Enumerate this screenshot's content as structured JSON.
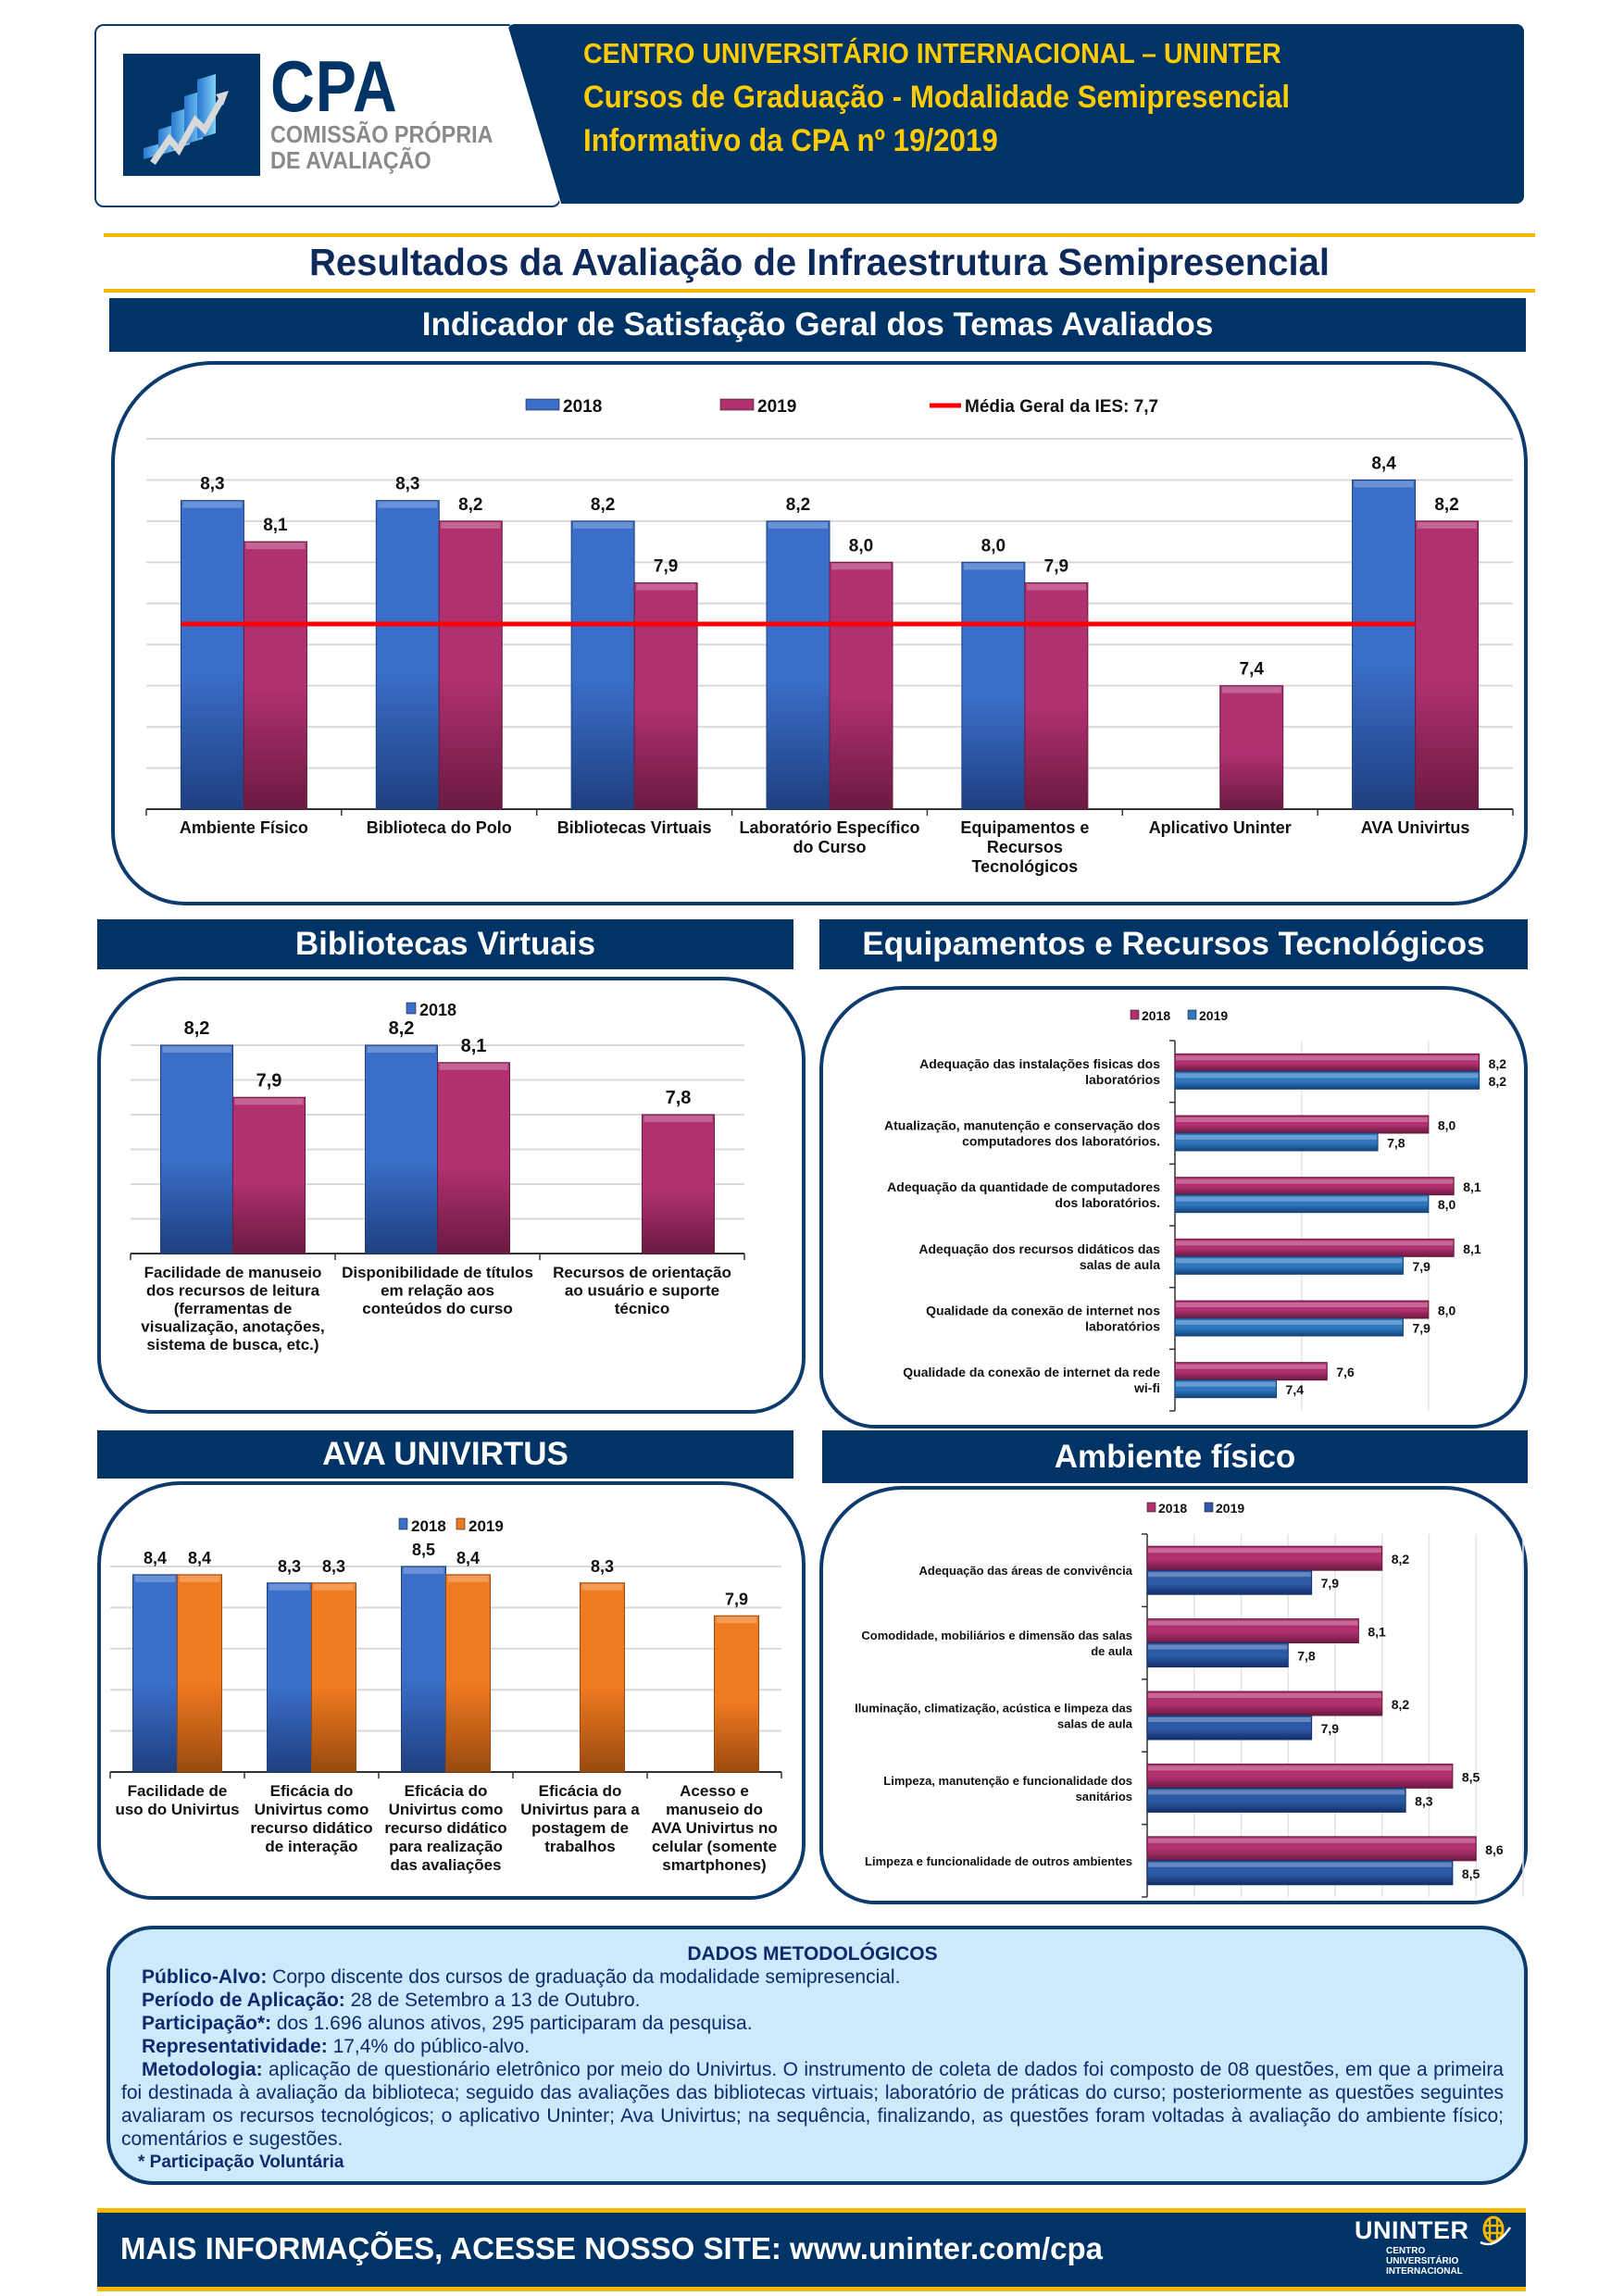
{
  "header": {
    "logo": {
      "title": "CPA",
      "subtitle_line1": "COMISSÃO PRÓPRIA",
      "subtitle_line2": "DE AVALIAÇÃO",
      "icon": "rising-bar-chart-icon"
    },
    "line1": "CENTRO UNIVERSITÁRIO INTERNACIONAL – UNINTER",
    "line2": "Cursos de Graduação - Modalidade Semipresencial",
    "line3": "Informativo da CPA nº 19/2019"
  },
  "page_title": "Resultados da Avaliação de Infraestrutura Semipresencial",
  "sections": {
    "main": "Indicador de Satisfação Geral dos Temas Avaliados",
    "bibliotecas": "Bibliotecas Virtuais",
    "equipamentos": "Equipamentos e Recursos Tecnológicos",
    "ava": "AVA UNIVIRTUS",
    "ambiente": "Ambiente físico"
  },
  "colors": {
    "navy": "#003366",
    "gold": "#f5b800",
    "yellow_text": "#ffcc00",
    "blue_2018": "#3a6ec8",
    "magenta_2019": "#b03070",
    "orange_2019": "#f07a20",
    "steel_blue_2019": "#2f78c0",
    "red_mean": "#ff0000",
    "method_bg": "#cdeafc"
  },
  "chart_data": [
    {
      "id": "main",
      "type": "bar",
      "title": "Indicador de Satisfação Geral dos Temas Avaliados",
      "categories": [
        "Ambiente Físico",
        "Biblioteca do Polo",
        "Bibliotecas Virtuais",
        "Laboratório Específico do Curso",
        "Equipamentos e Recursos Tecnológicos",
        "Aplicativo Uninter",
        "AVA Univirtus"
      ],
      "category_lines": [
        [
          "Ambiente Físico"
        ],
        [
          "Biblioteca do Polo"
        ],
        [
          "Bibliotecas Virtuais"
        ],
        [
          "Laboratório Específico",
          "do Curso"
        ],
        [
          "Equipamentos e",
          "Recursos",
          "Tecnológicos"
        ],
        [
          "Aplicativo Uninter"
        ],
        [
          "AVA Univirtus"
        ]
      ],
      "series": [
        {
          "name": "2018",
          "values": [
            8.3,
            8.3,
            8.2,
            8.2,
            8.0,
            null,
            8.4
          ],
          "labels": [
            "8,3",
            "8,3",
            "8,2",
            "8,2",
            "8,0",
            "",
            "8,4"
          ]
        },
        {
          "name": "2019",
          "values": [
            8.1,
            8.2,
            7.9,
            8.0,
            7.9,
            7.4,
            8.2
          ],
          "labels": [
            "8,1",
            "8,2",
            "7,9",
            "8,0",
            "7,9",
            "7,4",
            "8,2"
          ]
        }
      ],
      "reference_line": {
        "name": "Média Geral da IES: 7,7",
        "value": 7.7
      },
      "legend": [
        "2018",
        "2019",
        "Média Geral da IES: 7,7"
      ],
      "legend_position": "top",
      "ylim": [
        6.8,
        8.6
      ],
      "grid_step": 0.2,
      "grid": true,
      "xlabel": "",
      "ylabel": ""
    },
    {
      "id": "bibliotecas",
      "type": "bar",
      "title": "Bibliotecas Virtuais",
      "categories": [
        "Facilidade de manuseio dos recursos de leitura (ferramentas de visualização, anotações, sistema de busca, etc.)",
        "Disponibilidade de títulos em relação aos conteúdos do curso",
        "Recursos de orientação ao usuário e suporte técnico"
      ],
      "category_lines": [
        [
          "Facilidade de manuseio",
          "dos recursos de leitura",
          "(ferramentas de",
          "visualização, anotações,",
          "sistema de busca, etc.)"
        ],
        [
          "Disponibilidade de títulos",
          "em relação aos",
          "conteúdos do curso"
        ],
        [
          "Recursos de orientação",
          "ao usuário e suporte",
          "técnico"
        ]
      ],
      "series": [
        {
          "name": "2018",
          "values": [
            8.2,
            8.2,
            null
          ],
          "labels": [
            "8,2",
            "8,2",
            ""
          ]
        },
        {
          "name": "2019",
          "values": [
            7.9,
            8.1,
            7.8
          ],
          "labels": [
            "7,9",
            "8,1",
            "7,8"
          ]
        }
      ],
      "legend": [
        "2018"
      ],
      "legend_position": "top",
      "ylim": [
        7.0,
        8.2
      ],
      "grid_step": 0.2,
      "grid": true
    },
    {
      "id": "equipamentos",
      "type": "bar",
      "orientation": "horizontal",
      "title": "Equipamentos e Recursos Tecnológicos",
      "categories": [
        "Adequação das instalações físicas dos laboratórios",
        "Atualização, manutenção e conservação dos computadores dos laboratórios.",
        "Adequação da quantidade de computadores dos laboratórios.",
        "Adequação dos recursos didáticos das salas de aula",
        "Qualidade da conexão de internet nos laboratórios",
        "Qualidade da conexão de internet da rede wi-fi"
      ],
      "category_lines": [
        [
          "Adequação das instalações fisicas dos",
          "laboratórios"
        ],
        [
          "Atualização, manutenção e conservação dos",
          "computadores dos laboratórios."
        ],
        [
          "Adequação da quantidade de computadores",
          "dos laboratórios."
        ],
        [
          "Adequação dos recursos didáticos das",
          "salas de aula"
        ],
        [
          "Qualidade da conexão de internet nos",
          "laboratórios"
        ],
        [
          "Qualidade da conexão de internet da rede",
          "wi-fi"
        ]
      ],
      "series": [
        {
          "name": "2018",
          "values": [
            8.2,
            8.0,
            8.1,
            8.1,
            8.0,
            7.6
          ],
          "labels": [
            "8,2",
            "8,0",
            "8,1",
            "8,1",
            "8,0",
            "7,6"
          ]
        },
        {
          "name": "2019",
          "values": [
            8.2,
            7.8,
            8.0,
            7.9,
            7.9,
            7.4
          ],
          "labels": [
            "8,2",
            "7,8",
            "8,0",
            "7,9",
            "7,9",
            "7,4"
          ]
        }
      ],
      "legend": [
        "2018",
        "2019"
      ],
      "legend_position": "top",
      "xlim": [
        7.0,
        8.3
      ],
      "grid_step": 0.5,
      "grid": true
    },
    {
      "id": "ava",
      "type": "bar",
      "title": "AVA UNIVIRTUS",
      "categories": [
        "Facilidade de uso do Univirtus",
        "Eficácia do Univirtus como recurso didático de interação",
        "Eficácia do Univirtus como recurso didático para realização das avaliações",
        "Eficácia do Univirtus para a postagem de trabalhos",
        "Acesso e manuseio do AVA Univirtus no celular (somente smartphones)"
      ],
      "category_lines": [
        [
          "Facilidade de",
          "uso do Univirtus"
        ],
        [
          "Eficácia do",
          "Univirtus como",
          "recurso didático",
          "de interação"
        ],
        [
          "Eficácia do",
          "Univirtus como",
          "recurso didático",
          "para realização",
          "das avaliações"
        ],
        [
          "Eficácia do",
          "Univirtus para a",
          "postagem de",
          "trabalhos"
        ],
        [
          "Acesso e",
          "manuseio do",
          "AVA Univirtus no",
          "celular (somente",
          "smartphones)"
        ]
      ],
      "series": [
        {
          "name": "2018",
          "values": [
            8.4,
            8.3,
            8.5,
            null,
            null
          ],
          "labels": [
            "8,4",
            "8,3",
            "8,5",
            "",
            ""
          ]
        },
        {
          "name": "2019",
          "values": [
            8.4,
            8.3,
            8.4,
            8.3,
            7.9
          ],
          "labels": [
            "8,4",
            "8,3",
            "8,4",
            "8,3",
            "7,9"
          ]
        }
      ],
      "legend": [
        "2018",
        "2019"
      ],
      "legend_position": "top",
      "ylim": [
        6.0,
        8.5
      ],
      "grid_step": 0.5,
      "grid": true
    },
    {
      "id": "ambiente",
      "type": "bar",
      "orientation": "horizontal",
      "title": "Ambiente físico",
      "categories": [
        "Adequação das áreas de convivência",
        "Comodidade, mobiliários e dimensão das salas de aula",
        "Iluminação, climatização, acústica e limpeza das salas de aula",
        "Limpeza, manutenção e funcionalidade dos sanitários",
        "Limpeza e funcionalidade de outros ambientes"
      ],
      "category_lines": [
        [
          "Adequação das áreas de convivência"
        ],
        [
          "Comodidade, mobiliários e dimensão das salas",
          "de aula"
        ],
        [
          "Iluminação, climatização, acústica e limpeza das",
          "salas de aula"
        ],
        [
          "Limpeza, manutenção e funcionalidade dos",
          "sanitários"
        ],
        [
          "Limpeza e funcionalidade de outros ambientes"
        ]
      ],
      "series": [
        {
          "name": "2018",
          "values": [
            8.2,
            8.1,
            8.2,
            8.5,
            8.6
          ],
          "labels": [
            "8,2",
            "8,1",
            "8,2",
            "8,5",
            "8,6"
          ]
        },
        {
          "name": "2019",
          "values": [
            7.9,
            7.8,
            7.9,
            8.3,
            8.5
          ],
          "labels": [
            "7,9",
            "7,8",
            "7,9",
            "8,3",
            "8,5"
          ]
        }
      ],
      "legend": [
        "2018",
        "2019"
      ],
      "legend_position": "top",
      "xlim": [
        7.2,
        8.8
      ],
      "grid_step": 0.2,
      "grid": true
    }
  ],
  "methodology": {
    "title": "DADOS METODOLÓGICOS",
    "publico_label": "Público-Alvo:",
    "publico_value": " Corpo discente dos cursos de graduação da modalidade semipresencial.",
    "periodo_label": "Período de Aplicação:",
    "periodo_value": " 28 de Setembro a 13 de Outubro.",
    "participacao_label": "Participação*:",
    "participacao_value": " dos 1.696 alunos ativos, 295 participaram da pesquisa.",
    "representatividade_label": "Representatividade:",
    "representatividade_value": " 17,4% do público-alvo.",
    "metodologia_label": "Metodologia:",
    "metodologia_value": "  aplicação de questionário eletrônico por meio do Univirtus. O instrumento de coleta de dados foi composto de 08 questões, em que a primeira foi destinada à avaliação da biblioteca; seguido das avaliações das bibliotecas virtuais; laboratório de práticas do curso; posteriormente as questões seguintes avaliaram os recursos tecnológicos; o aplicativo Uninter; Ava Univirtus; na sequência, finalizando, as questões foram voltadas à avaliação do ambiente físico; comentários e sugestões.",
    "footnote": "* Participação Voluntária"
  },
  "footer": {
    "text": "MAIS INFORMAÇÕES, ACESSE NOSSO SITE: www.uninter.com/cpa",
    "logo_name": "UNINTER",
    "logo_sub1": "CENTRO",
    "logo_sub2": "UNIVERSITÁRIO",
    "logo_sub3": "INTERNACIONAL"
  }
}
